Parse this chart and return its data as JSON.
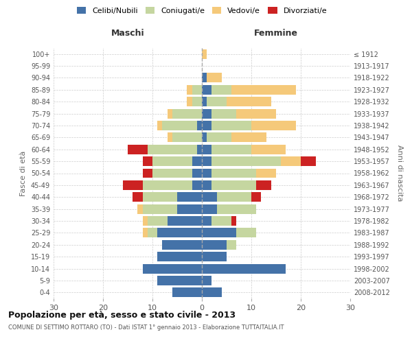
{
  "age_groups": [
    "0-4",
    "5-9",
    "10-14",
    "15-19",
    "20-24",
    "25-29",
    "30-34",
    "35-39",
    "40-44",
    "45-49",
    "50-54",
    "55-59",
    "60-64",
    "65-69",
    "70-74",
    "75-79",
    "80-84",
    "85-89",
    "90-94",
    "95-99",
    "100+"
  ],
  "birth_years": [
    "2008-2012",
    "2003-2007",
    "1998-2002",
    "1993-1997",
    "1988-1992",
    "1983-1987",
    "1978-1982",
    "1973-1977",
    "1968-1972",
    "1963-1967",
    "1958-1962",
    "1953-1957",
    "1948-1952",
    "1943-1947",
    "1938-1942",
    "1933-1937",
    "1928-1932",
    "1923-1927",
    "1918-1922",
    "1913-1917",
    "≤ 1912"
  ],
  "males": {
    "celibi": [
      6,
      9,
      12,
      9,
      8,
      9,
      7,
      5,
      5,
      2,
      2,
      2,
      1,
      0,
      1,
      0,
      0,
      0,
      0,
      0,
      0
    ],
    "coniugati": [
      0,
      0,
      0,
      0,
      0,
      2,
      4,
      7,
      7,
      10,
      8,
      8,
      10,
      6,
      7,
      6,
      2,
      2,
      0,
      0,
      0
    ],
    "vedovi": [
      0,
      0,
      0,
      0,
      0,
      1,
      1,
      1,
      0,
      0,
      0,
      0,
      0,
      1,
      1,
      1,
      1,
      1,
      0,
      0,
      0
    ],
    "divorziati": [
      0,
      0,
      0,
      0,
      0,
      0,
      0,
      0,
      2,
      4,
      2,
      2,
      4,
      0,
      0,
      0,
      0,
      0,
      0,
      0,
      0
    ]
  },
  "females": {
    "nubili": [
      4,
      2,
      17,
      5,
      5,
      7,
      2,
      3,
      3,
      2,
      2,
      2,
      2,
      1,
      2,
      2,
      1,
      2,
      1,
      0,
      0
    ],
    "coniugate": [
      0,
      0,
      0,
      0,
      2,
      4,
      4,
      8,
      7,
      9,
      9,
      14,
      8,
      5,
      8,
      5,
      4,
      4,
      0,
      0,
      0
    ],
    "vedove": [
      0,
      0,
      0,
      0,
      0,
      0,
      0,
      0,
      0,
      0,
      4,
      4,
      7,
      7,
      9,
      8,
      9,
      13,
      3,
      0,
      1
    ],
    "divorziate": [
      0,
      0,
      0,
      0,
      0,
      0,
      1,
      0,
      2,
      3,
      0,
      3,
      0,
      0,
      0,
      0,
      0,
      0,
      0,
      0,
      0
    ]
  },
  "colors": {
    "celibi": "#4472a8",
    "coniugati": "#c5d6a0",
    "vedovi": "#f5c97a",
    "divorziati": "#cc2222"
  },
  "xlim": 30,
  "title": "Popolazione per età, sesso e stato civile - 2013",
  "subtitle": "COMUNE DI SETTIMO ROTTARO (TO) - Dati ISTAT 1° gennaio 2013 - Elaborazione TUTTAITALIA.IT",
  "ylabel_left": "Fasce di età",
  "ylabel_right": "Anni di nascita",
  "xlabel_male": "Maschi",
  "xlabel_female": "Femmine",
  "legend_labels": [
    "Celibi/Nubili",
    "Coniugati/e",
    "Vedovi/e",
    "Divorziati/e"
  ],
  "background_color": "#ffffff",
  "grid_color": "#cccccc"
}
